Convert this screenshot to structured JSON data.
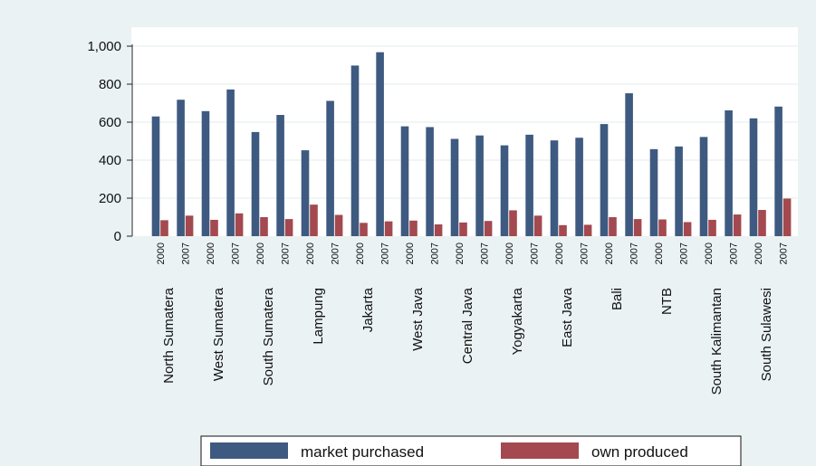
{
  "chart_data": {
    "type": "bar",
    "title": "",
    "xlabel": "",
    "ylabel": "",
    "ylim": [
      0,
      1000
    ],
    "yticks": [
      0,
      200,
      400,
      600,
      800,
      1000
    ],
    "ytick_labels": [
      "0",
      "200",
      "400",
      "600",
      "800",
      "1,000"
    ],
    "grid": true,
    "legend_position": "bottom",
    "groups": [
      "North Sumatera",
      "West Sumatera",
      "South Sumatera",
      "Lampung",
      "Jakarta",
      "West Java",
      "Central Java",
      "Yogyakarta",
      "East Java",
      "Bali",
      "NTB",
      "South Kalimantan",
      "South Sulawesi"
    ],
    "years": [
      "2000",
      "2007"
    ],
    "series": [
      {
        "name": "market purchased",
        "color": "#3e5a80",
        "values": [
          [
            630,
            718
          ],
          [
            658,
            772
          ],
          [
            548,
            638
          ],
          [
            452,
            712
          ],
          [
            898,
            968
          ],
          [
            578,
            574
          ],
          [
            512,
            530
          ],
          [
            478,
            534
          ],
          [
            504,
            518
          ],
          [
            590,
            752
          ],
          [
            458,
            472
          ],
          [
            522,
            662
          ],
          [
            620,
            682
          ]
        ]
      },
      {
        "name": "own produced",
        "color": "#a3494f",
        "values": [
          [
            84,
            108
          ],
          [
            86,
            120
          ],
          [
            100,
            90
          ],
          [
            166,
            112
          ],
          [
            70,
            78
          ],
          [
            82,
            62
          ],
          [
            72,
            80
          ],
          [
            136,
            108
          ],
          [
            58,
            60
          ],
          [
            100,
            90
          ],
          [
            88,
            74
          ],
          [
            86,
            114
          ],
          [
            138,
            198
          ]
        ]
      }
    ]
  }
}
